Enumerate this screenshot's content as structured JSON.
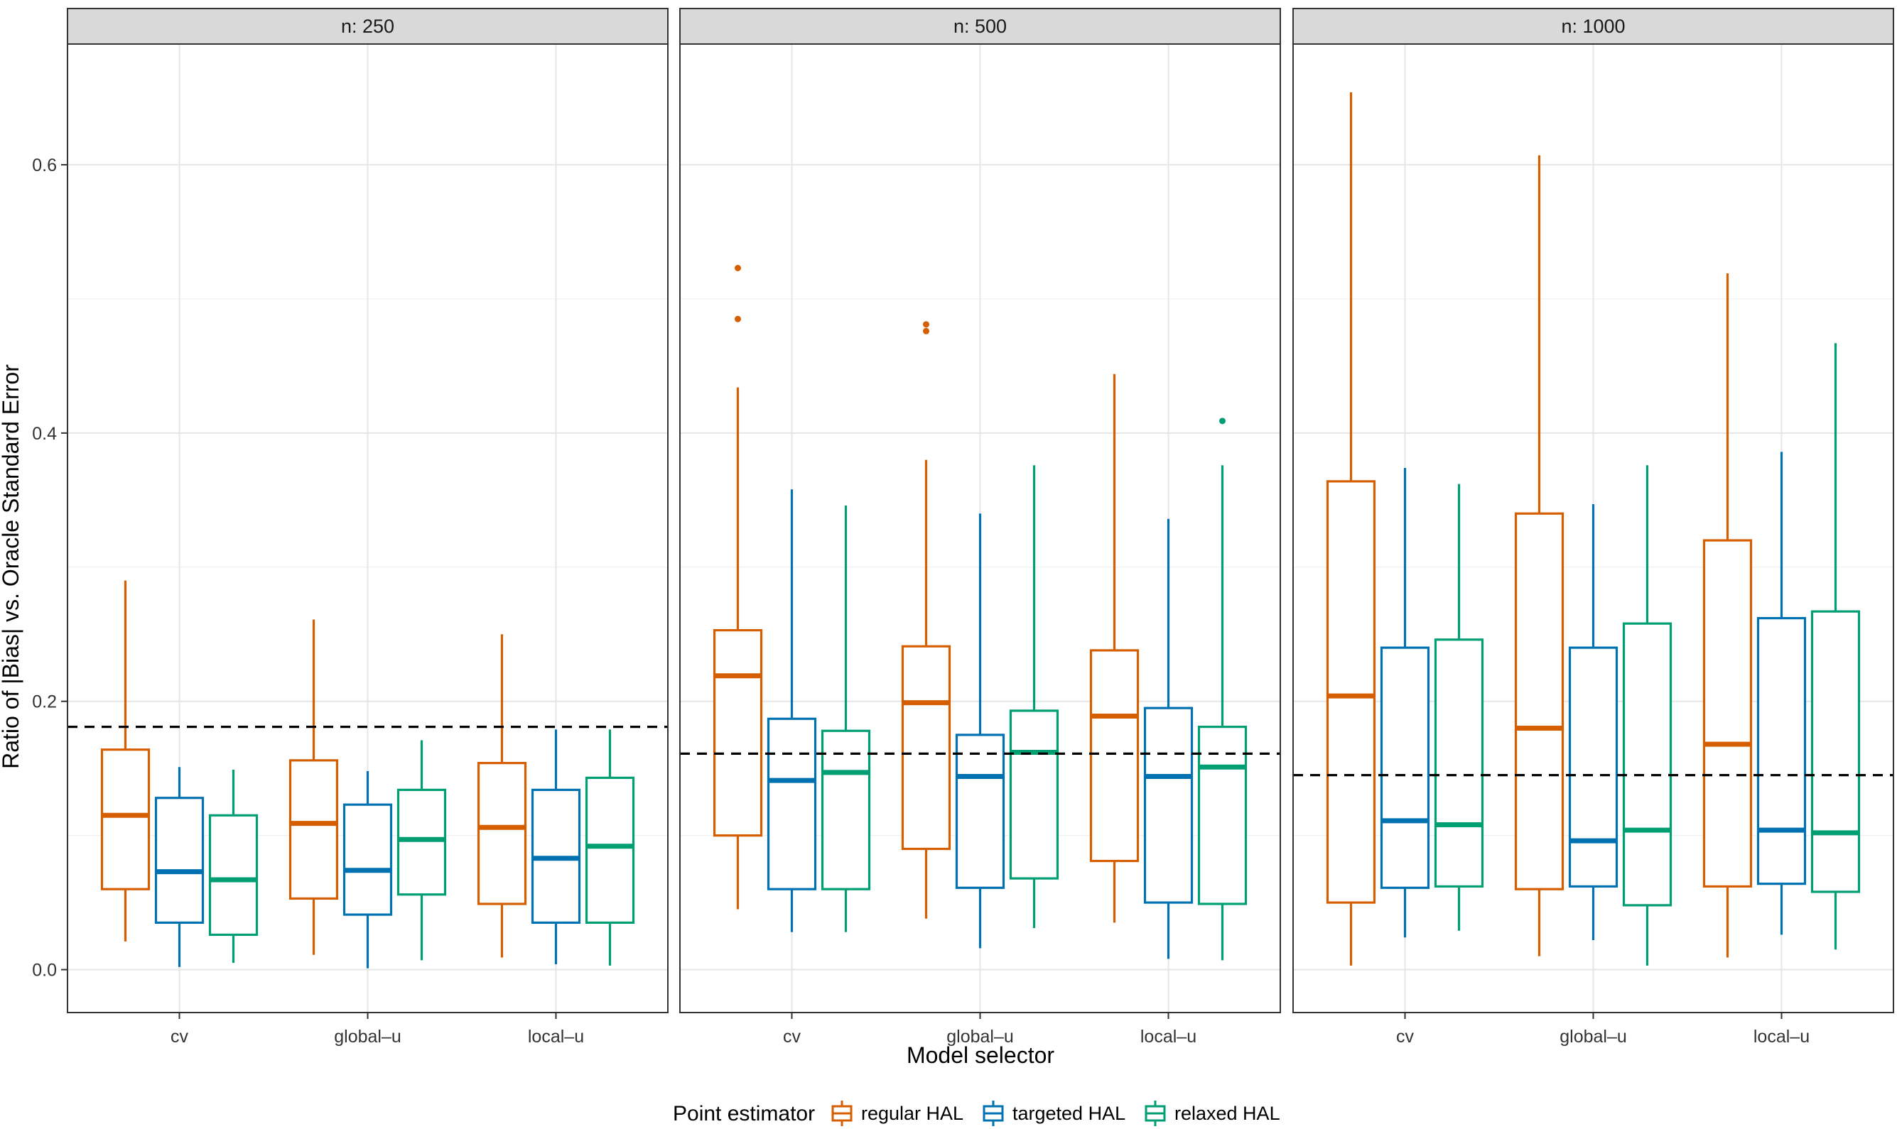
{
  "chart_data": {
    "type": "boxplot",
    "xlabel": "Model selector",
    "ylabel": "Ratio of |Bias| vs. Oracle Standard Error",
    "ylim": [
      -0.032,
      0.69
    ],
    "yticks": [
      "0.0",
      "0.2",
      "0.4",
      "0.6"
    ],
    "ytick_values": [
      0.0,
      0.2,
      0.4,
      0.6
    ],
    "categories": [
      "cv",
      "global–u",
      "local–u"
    ],
    "grid": true,
    "legend": {
      "title": "Point estimator",
      "position": "bottom",
      "items": [
        {
          "name": "regular HAL",
          "color": "#D55E00"
        },
        {
          "name": "targeted HAL",
          "color": "#0072B2"
        },
        {
          "name": "relaxed HAL",
          "color": "#009E73"
        }
      ]
    },
    "panels": [
      {
        "label": "n: 250",
        "reference_line": 0.181,
        "groups": [
          {
            "category": "cv",
            "boxes": [
              {
                "series": "regular HAL",
                "lower_whisker": 0.021,
                "q1": 0.06,
                "median": 0.115,
                "q3": 0.164,
                "upper_whisker": 0.29,
                "outliers": []
              },
              {
                "series": "targeted HAL",
                "lower_whisker": 0.002,
                "q1": 0.035,
                "median": 0.073,
                "q3": 0.128,
                "upper_whisker": 0.151,
                "outliers": []
              },
              {
                "series": "relaxed HAL",
                "lower_whisker": 0.005,
                "q1": 0.026,
                "median": 0.067,
                "q3": 0.115,
                "upper_whisker": 0.149,
                "outliers": []
              }
            ]
          },
          {
            "category": "global–u",
            "boxes": [
              {
                "series": "regular HAL",
                "lower_whisker": 0.011,
                "q1": 0.053,
                "median": 0.109,
                "q3": 0.156,
                "upper_whisker": 0.261,
                "outliers": []
              },
              {
                "series": "targeted HAL",
                "lower_whisker": 0.001,
                "q1": 0.041,
                "median": 0.074,
                "q3": 0.123,
                "upper_whisker": 0.148,
                "outliers": []
              },
              {
                "series": "relaxed HAL",
                "lower_whisker": 0.007,
                "q1": 0.056,
                "median": 0.097,
                "q3": 0.134,
                "upper_whisker": 0.171,
                "outliers": []
              }
            ]
          },
          {
            "category": "local–u",
            "boxes": [
              {
                "series": "regular HAL",
                "lower_whisker": 0.009,
                "q1": 0.049,
                "median": 0.106,
                "q3": 0.154,
                "upper_whisker": 0.25,
                "outliers": []
              },
              {
                "series": "targeted HAL",
                "lower_whisker": 0.004,
                "q1": 0.035,
                "median": 0.083,
                "q3": 0.134,
                "upper_whisker": 0.179,
                "outliers": []
              },
              {
                "series": "relaxed HAL",
                "lower_whisker": 0.003,
                "q1": 0.035,
                "median": 0.092,
                "q3": 0.143,
                "upper_whisker": 0.179,
                "outliers": []
              }
            ]
          }
        ]
      },
      {
        "label": "n: 500",
        "reference_line": 0.161,
        "groups": [
          {
            "category": "cv",
            "boxes": [
              {
                "series": "regular HAL",
                "lower_whisker": 0.045,
                "q1": 0.1,
                "median": 0.219,
                "q3": 0.253,
                "upper_whisker": 0.434,
                "outliers": [
                  0.485,
                  0.523
                ]
              },
              {
                "series": "targeted HAL",
                "lower_whisker": 0.028,
                "q1": 0.06,
                "median": 0.141,
                "q3": 0.187,
                "upper_whisker": 0.358,
                "outliers": []
              },
              {
                "series": "relaxed HAL",
                "lower_whisker": 0.028,
                "q1": 0.06,
                "median": 0.147,
                "q3": 0.178,
                "upper_whisker": 0.346,
                "outliers": []
              }
            ]
          },
          {
            "category": "global–u",
            "boxes": [
              {
                "series": "regular HAL",
                "lower_whisker": 0.038,
                "q1": 0.09,
                "median": 0.199,
                "q3": 0.241,
                "upper_whisker": 0.38,
                "outliers": [
                  0.476,
                  0.481
                ]
              },
              {
                "series": "targeted HAL",
                "lower_whisker": 0.016,
                "q1": 0.061,
                "median": 0.144,
                "q3": 0.175,
                "upper_whisker": 0.34,
                "outliers": []
              },
              {
                "series": "relaxed HAL",
                "lower_whisker": 0.031,
                "q1": 0.068,
                "median": 0.162,
                "q3": 0.193,
                "upper_whisker": 0.376,
                "outliers": []
              }
            ]
          },
          {
            "category": "local–u",
            "boxes": [
              {
                "series": "regular HAL",
                "lower_whisker": 0.035,
                "q1": 0.081,
                "median": 0.189,
                "q3": 0.238,
                "upper_whisker": 0.444,
                "outliers": []
              },
              {
                "series": "targeted HAL",
                "lower_whisker": 0.008,
                "q1": 0.05,
                "median": 0.144,
                "q3": 0.195,
                "upper_whisker": 0.336,
                "outliers": []
              },
              {
                "series": "relaxed HAL",
                "lower_whisker": 0.007,
                "q1": 0.049,
                "median": 0.151,
                "q3": 0.181,
                "upper_whisker": 0.376,
                "outliers": [
                  0.409
                ]
              }
            ]
          }
        ]
      },
      {
        "label": "n: 1000",
        "reference_line": 0.145,
        "groups": [
          {
            "category": "cv",
            "boxes": [
              {
                "series": "regular HAL",
                "lower_whisker": 0.003,
                "q1": 0.05,
                "median": 0.204,
                "q3": 0.364,
                "upper_whisker": 0.654,
                "outliers": []
              },
              {
                "series": "targeted HAL",
                "lower_whisker": 0.024,
                "q1": 0.061,
                "median": 0.111,
                "q3": 0.24,
                "upper_whisker": 0.374,
                "outliers": []
              },
              {
                "series": "relaxed HAL",
                "lower_whisker": 0.029,
                "q1": 0.062,
                "median": 0.108,
                "q3": 0.246,
                "upper_whisker": 0.362,
                "outliers": []
              }
            ]
          },
          {
            "category": "global–u",
            "boxes": [
              {
                "series": "regular HAL",
                "lower_whisker": 0.01,
                "q1": 0.06,
                "median": 0.18,
                "q3": 0.34,
                "upper_whisker": 0.607,
                "outliers": []
              },
              {
                "series": "targeted HAL",
                "lower_whisker": 0.022,
                "q1": 0.062,
                "median": 0.096,
                "q3": 0.24,
                "upper_whisker": 0.347,
                "outliers": []
              },
              {
                "series": "relaxed HAL",
                "lower_whisker": 0.003,
                "q1": 0.048,
                "median": 0.104,
                "q3": 0.258,
                "upper_whisker": 0.376,
                "outliers": []
              }
            ]
          },
          {
            "category": "local–u",
            "boxes": [
              {
                "series": "regular HAL",
                "lower_whisker": 0.009,
                "q1": 0.062,
                "median": 0.168,
                "q3": 0.32,
                "upper_whisker": 0.519,
                "outliers": []
              },
              {
                "series": "targeted HAL",
                "lower_whisker": 0.026,
                "q1": 0.064,
                "median": 0.104,
                "q3": 0.262,
                "upper_whisker": 0.386,
                "outliers": []
              },
              {
                "series": "relaxed HAL",
                "lower_whisker": 0.015,
                "q1": 0.058,
                "median": 0.102,
                "q3": 0.267,
                "upper_whisker": 0.467,
                "outliers": []
              }
            ]
          }
        ]
      }
    ]
  }
}
